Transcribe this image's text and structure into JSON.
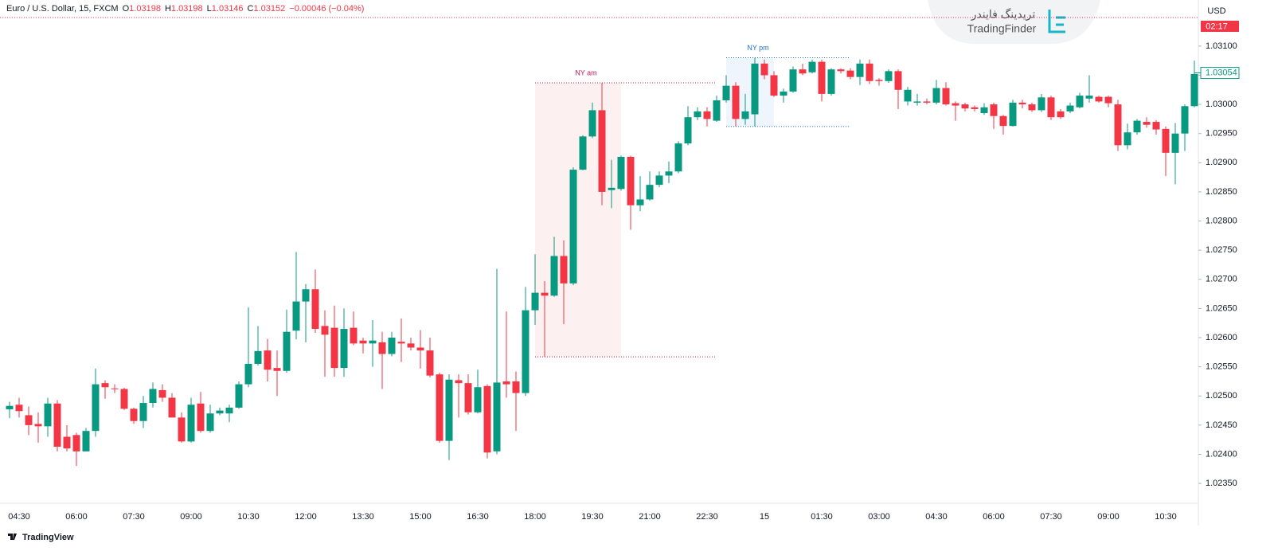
{
  "header": {
    "symbol": "Euro / U.S. Dollar, 15, FXCM",
    "ohlc": [
      {
        "key": "O",
        "value": "1.03198"
      },
      {
        "key": "H",
        "value": "1.03198"
      },
      {
        "key": "L",
        "value": "1.03146"
      },
      {
        "key": "C",
        "value": "1.03152"
      }
    ],
    "change": "−0.00046 (−0.04%)",
    "currency": "USD",
    "countdown": "02:17"
  },
  "logo": {
    "name_fa": "تریدینگ فایندر",
    "name": "TradingFinder"
  },
  "footer": "TradingView",
  "chart_data": {
    "type": "candlestick",
    "categories": [
      null,
      "04:30",
      null,
      null,
      null,
      null,
      null,
      "06:00",
      null,
      null,
      null,
      null,
      null,
      "07:30",
      null,
      null,
      null,
      null,
      null,
      "09:00",
      null,
      null,
      null,
      null,
      null,
      "10:30",
      null,
      null,
      null,
      null,
      null,
      "12:00",
      null,
      null,
      null,
      null,
      null,
      "13:30",
      null,
      null,
      null,
      null,
      null,
      "15:00",
      null,
      null,
      null,
      null,
      null,
      "16:30",
      null,
      null,
      null,
      null,
      null,
      "18:00",
      null,
      null,
      null,
      null,
      null,
      "19:30",
      null,
      null,
      null,
      null,
      null,
      "21:00",
      null,
      null,
      null,
      null,
      null,
      "22:30",
      null,
      null,
      null,
      null,
      null,
      "15",
      null,
      null,
      null,
      null,
      null,
      "01:30",
      null,
      null,
      null,
      null,
      null,
      "03:00",
      null,
      null,
      null,
      null,
      null,
      "04:30",
      null,
      null,
      null,
      null,
      null,
      "06:00",
      null,
      null,
      null,
      null,
      null,
      "07:30",
      null,
      null,
      null,
      null,
      null,
      "09:00",
      null,
      null,
      null,
      null,
      null,
      "10:30",
      null,
      null,
      null
    ],
    "open": [
      1.02477,
      1.02485,
      1.02467,
      1.02452,
      1.02448,
      1.02487,
      1.0243,
      1.02433,
      1.02405,
      1.0244,
      1.02522,
      1.02513,
      1.02512,
      1.02478,
      1.02457,
      1.02488,
      1.0251,
      1.02497,
      1.02463,
      1.02422,
      1.02487,
      1.0244,
      1.0247,
      1.0247,
      1.0248,
      1.0252,
      1.02555,
      1.02578,
      1.02548,
      1.02543,
      1.02612,
      1.02662,
      1.02683,
      1.0262,
      1.02617,
      1.02548,
      1.02617,
      1.02595,
      1.0259,
      1.02592,
      1.02572,
      1.02593,
      1.0259,
      1.02583,
      1.02578,
      1.02537,
      1.02423,
      1.02527,
      1.02522,
      1.02472,
      1.02517,
      1.02405,
      1.02525,
      1.02525,
      1.02505,
      1.02647,
      1.02677,
      1.02672,
      1.0274,
      1.02693,
      1.02888,
      1.02945,
      1.0299,
      1.02853,
      1.02855,
      1.0291,
      1.02827,
      1.02837,
      1.02862,
      1.02878,
      1.02885,
      1.02933,
      1.02978,
      1.02988,
      1.02972,
      1.03007,
      1.03032,
      1.02975,
      1.02983,
      1.0307,
      1.0305,
      1.03015,
      1.03022,
      1.0306,
      1.03055,
      1.03073,
      1.03018,
      1.0306,
      1.03058,
      1.03047,
      1.0307,
      1.03042,
      1.0304,
      1.03057,
      1.03005,
      1.03003,
      1.03005,
      1.03003,
      1.03028,
      1.03002,
      1.03,
      1.02995,
      1.02985,
      1.03,
      1.0298,
      1.02963,
      1.03003,
      1.03,
      1.0299,
      1.03012,
      1.02988,
      1.02988,
      1.02995,
      1.0301,
      1.03013,
      1.03013,
      1.03,
      1.0293,
      1.02952,
      1.0297,
      1.0297,
      1.02958,
      1.02917,
      1.0295,
      1.02997
    ],
    "high": [
      1.0249,
      1.02497,
      1.02482,
      1.02472,
      1.02497,
      1.02493,
      1.0245,
      1.02437,
      1.02445,
      1.02547,
      1.02527,
      1.0252,
      1.02514,
      1.0248,
      1.025,
      1.02523,
      1.0252,
      1.02505,
      1.02472,
      1.02497,
      1.02507,
      1.02485,
      1.0248,
      1.02485,
      1.02525,
      1.02652,
      1.0262,
      1.02598,
      1.02578,
      1.02648,
      1.02747,
      1.02692,
      1.02717,
      1.02647,
      1.02655,
      1.0265,
      1.02645,
      1.026,
      1.0263,
      1.0261,
      1.0261,
      1.02633,
      1.026,
      1.02613,
      1.026,
      1.0254,
      1.02537,
      1.02537,
      1.02537,
      1.02545,
      1.0252,
      1.02718,
      1.02645,
      1.02542,
      1.02687,
      1.02743,
      1.02697,
      1.02773,
      1.02767,
      1.02892,
      1.02947,
      1.03003,
      1.03037,
      1.02905,
      1.02912,
      1.02912,
      1.02877,
      1.02885,
      1.02885,
      1.02902,
      1.02937,
      1.02997,
      1.02995,
      1.02995,
      1.03015,
      1.0305,
      1.03038,
      1.03018,
      1.0308,
      1.03077,
      1.03057,
      1.03027,
      1.03065,
      1.0307,
      1.03077,
      1.03077,
      1.03062,
      1.03062,
      1.03062,
      1.03077,
      1.03077,
      1.03045,
      1.0306,
      1.0306,
      1.0303,
      1.03018,
      1.0301,
      1.03042,
      1.03038,
      1.03005,
      1.03003,
      1.02998,
      1.03002,
      1.03003,
      1.02982,
      1.03008,
      1.03008,
      1.03003,
      1.03018,
      1.03015,
      1.02992,
      1.03003,
      1.0302,
      1.0305,
      1.03015,
      1.03015,
      1.03008,
      1.02967,
      1.02975,
      1.02978,
      1.02973,
      1.02962,
      1.02968,
      1.03,
      1.03075
    ],
    "low": [
      1.02462,
      1.02463,
      1.02433,
      1.0242,
      1.0243,
      1.02405,
      1.02405,
      1.0238,
      1.02405,
      1.0243,
      1.02495,
      1.02505,
      1.02476,
      1.02452,
      1.02445,
      1.0248,
      1.0249,
      1.02463,
      1.0242,
      1.0242,
      1.02437,
      1.02437,
      1.02467,
      1.02455,
      1.02478,
      1.02515,
      1.02552,
      1.02525,
      1.025,
      1.0254,
      1.02597,
      1.02592,
      1.02608,
      1.02533,
      1.02533,
      1.02533,
      1.02587,
      1.02573,
      1.0255,
      1.02512,
      1.02568,
      1.02558,
      1.02578,
      1.02547,
      1.02532,
      1.0242,
      1.0239,
      1.02463,
      1.02468,
      1.0247,
      1.02393,
      1.024,
      1.02497,
      1.0244,
      1.025,
      1.02622,
      1.02567,
      1.0267,
      1.02623,
      1.0269,
      1.02887,
      1.02942,
      1.02827,
      1.02822,
      1.02852,
      1.02785,
      1.02817,
      1.02835,
      1.02858,
      1.02865,
      1.02882,
      1.0293,
      1.02973,
      1.02962,
      1.0297,
      1.03003,
      1.02962,
      1.02965,
      1.02962,
      1.03043,
      1.03013,
      1.03003,
      1.0302,
      1.0305,
      1.03053,
      1.03005,
      1.03015,
      1.03053,
      1.03043,
      1.03033,
      1.03035,
      1.03032,
      1.03037,
      1.02992,
      1.02998,
      1.02998,
      1.03,
      1.03,
      1.02998,
      1.02972,
      1.02988,
      1.02988,
      1.02982,
      1.02958,
      1.02948,
      1.02962,
      1.02993,
      1.02987,
      1.02987,
      1.02973,
      1.02975,
      1.02985,
      1.02993,
      1.03003,
      1.03003,
      1.02995,
      1.0292,
      1.02923,
      1.02948,
      1.0296,
      1.02948,
      1.02877,
      1.02863,
      1.0292,
      1.02995
    ],
    "close": [
      1.02483,
      1.02474,
      1.0245,
      1.02448,
      1.02487,
      1.02413,
      1.0241,
      1.02405,
      1.0244,
      1.0252,
      1.02515,
      1.02512,
      1.02478,
      1.02457,
      1.02488,
      1.02512,
      1.02497,
      1.02463,
      1.02422,
      1.02485,
      1.0244,
      1.0247,
      1.02475,
      1.0248,
      1.0252,
      1.02555,
      1.02577,
      1.02545,
      1.02543,
      1.0261,
      1.02662,
      1.02683,
      1.02615,
      1.02605,
      1.02548,
      1.02615,
      1.0259,
      1.0259,
      1.02595,
      1.02572,
      1.026,
      1.0259,
      1.02583,
      1.02578,
      1.02535,
      1.02423,
      1.02528,
      1.02522,
      1.02472,
      1.02515,
      1.02403,
      1.02523,
      1.0252,
      1.02505,
      1.02647,
      1.02677,
      1.02672,
      1.0274,
      1.02693,
      1.02888,
      1.02945,
      1.0299,
      1.0285,
      1.02857,
      1.0291,
      1.02827,
      1.02837,
      1.02862,
      1.02878,
      1.02885,
      1.02933,
      1.02978,
      1.02988,
      1.02975,
      1.03007,
      1.03032,
      1.02975,
      1.02988,
      1.0307,
      1.0305,
      1.03015,
      1.03022,
      1.0306,
      1.03053,
      1.03073,
      1.03018,
      1.0306,
      1.03057,
      1.03047,
      1.0307,
      1.0304,
      1.0304,
      1.03057,
      1.03025,
      1.03025,
      1.03005,
      1.03003,
      1.03028,
      1.03,
      1.02998,
      1.02993,
      1.02992,
      1.02995,
      1.0298,
      1.02963,
      1.03003,
      1.03,
      1.0299,
      1.03012,
      1.02978,
      1.02978,
      1.02998,
      1.03015,
      1.03015,
      1.03005,
      1.03002,
      1.0293,
      1.02952,
      1.02972,
      1.02965,
      1.02957,
      1.02917,
      1.0295,
      1.02997,
      1.03052
    ],
    "up_color": "#089981",
    "down_color": "#f23645",
    "ylim": [
      1.02316,
      1.03179
    ],
    "yticks": [
      {
        "value": 1.031,
        "label": "1.03100"
      },
      {
        "value": 1.0305,
        "label": "1.03050"
      },
      {
        "value": 1.03,
        "label": "1.03000"
      },
      {
        "value": 1.0295,
        "label": "1.02950"
      },
      {
        "value": 1.029,
        "label": "1.02900"
      },
      {
        "value": 1.0285,
        "label": "1.02850"
      },
      {
        "value": 1.028,
        "label": "1.02800"
      },
      {
        "value": 1.0275,
        "label": "1.02750"
      },
      {
        "value": 1.027,
        "label": "1.02700"
      },
      {
        "value": 1.0265,
        "label": "1.02650"
      },
      {
        "value": 1.026,
        "label": "1.02600"
      },
      {
        "value": 1.0255,
        "label": "1.02550"
      },
      {
        "value": 1.025,
        "label": "1.02500"
      },
      {
        "value": 1.0245,
        "label": "1.02450"
      },
      {
        "value": 1.024,
        "label": "1.02400"
      },
      {
        "value": 1.0235,
        "label": "1.02350"
      }
    ],
    "last_price": {
      "value": 1.03054,
      "label": "1.03054"
    },
    "annotations": [
      {
        "label": "NY am",
        "high": 1.03037,
        "low": 1.02567,
        "color": "#c2185b",
        "fill": "#fdf0f0"
      },
      {
        "label": "NY pm",
        "high": 1.0308,
        "low": 1.02962,
        "color": "#1e6fd9",
        "fill": "#eef5fd"
      }
    ]
  }
}
